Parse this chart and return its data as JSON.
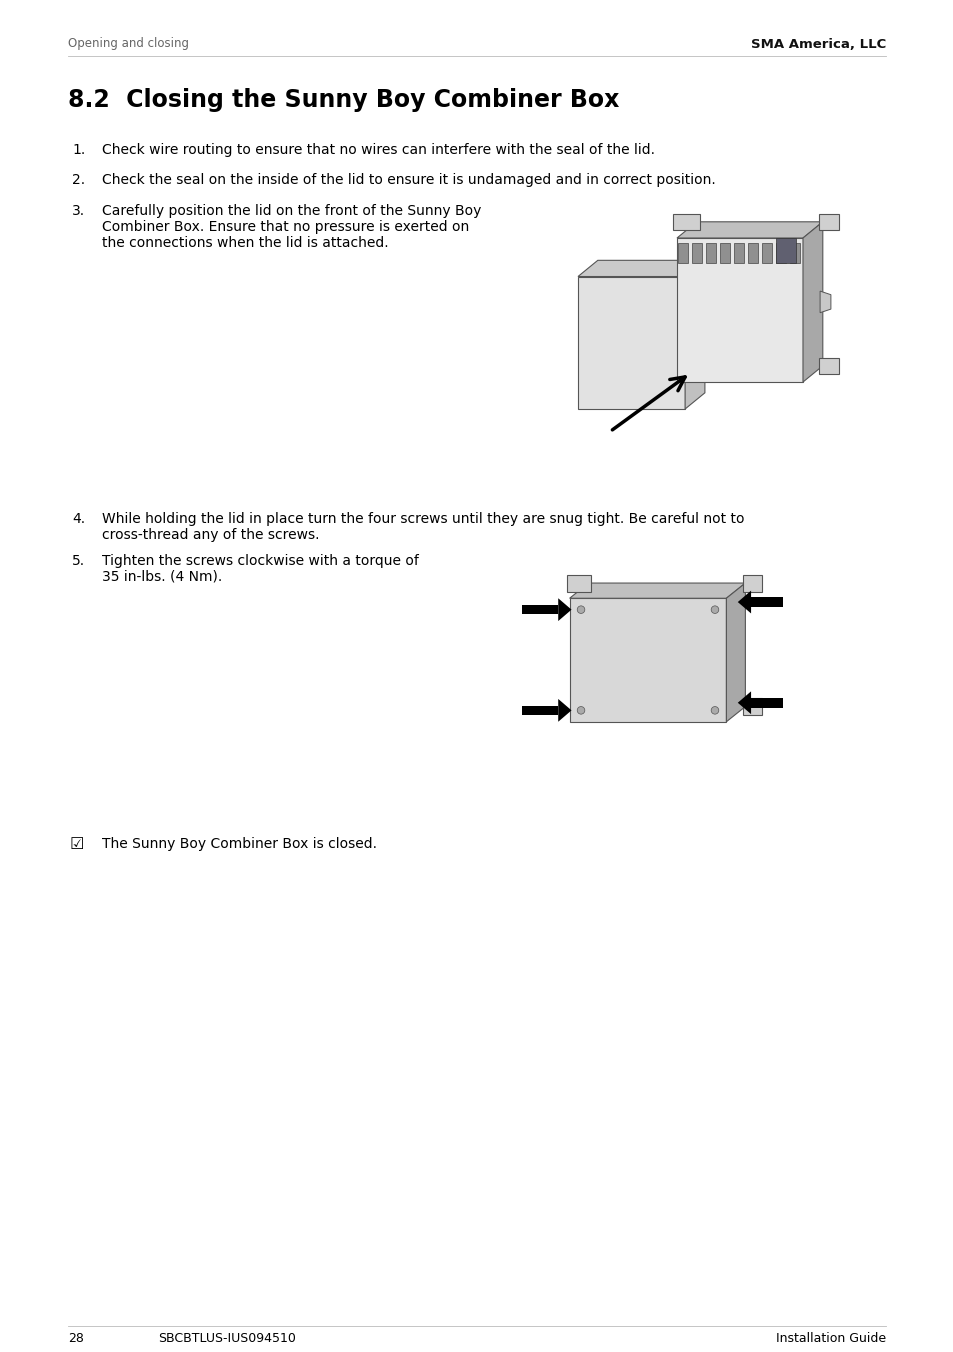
{
  "bg_color": "#ffffff",
  "header_left": "Opening and closing",
  "header_right": "SMA America, LLC",
  "section_title": "8.2  Closing the Sunny Boy Combiner Box",
  "item1": "Check wire routing to ensure that no wires can interfere with the seal of the lid.",
  "item2": "Check the seal on the inside of the lid to ensure it is undamaged and in correct position.",
  "item3_line1": "Carefully position the lid on the front of the Sunny Boy",
  "item3_line2": "Combiner Box. Ensure that no pressure is exerted on",
  "item3_line3": "the connections when the lid is attached.",
  "item4_line1": "While holding the lid in place turn the four screws until they are snug tight. Be careful not to",
  "item4_line2": "cross-thread any of the screws.",
  "item5_line1": "Tighten the screws clockwise with a torque of",
  "item5_line2": "35 in-lbs. (4 Nm).",
  "result_text": "The Sunny Boy Combiner Box is closed.",
  "footer_page": "28",
  "footer_code": "SBCBTLUS-IUS094510",
  "footer_right": "Installation Guide",
  "gray_light": "#d8d8d8",
  "gray_mid": "#c0c0c0",
  "gray_dark": "#a8a8a8",
  "gray_bracket": "#cccccc",
  "gray_lid": "#e2e2e2",
  "gray_lid_top": "#cacaca",
  "gray_terminal": "#888888"
}
